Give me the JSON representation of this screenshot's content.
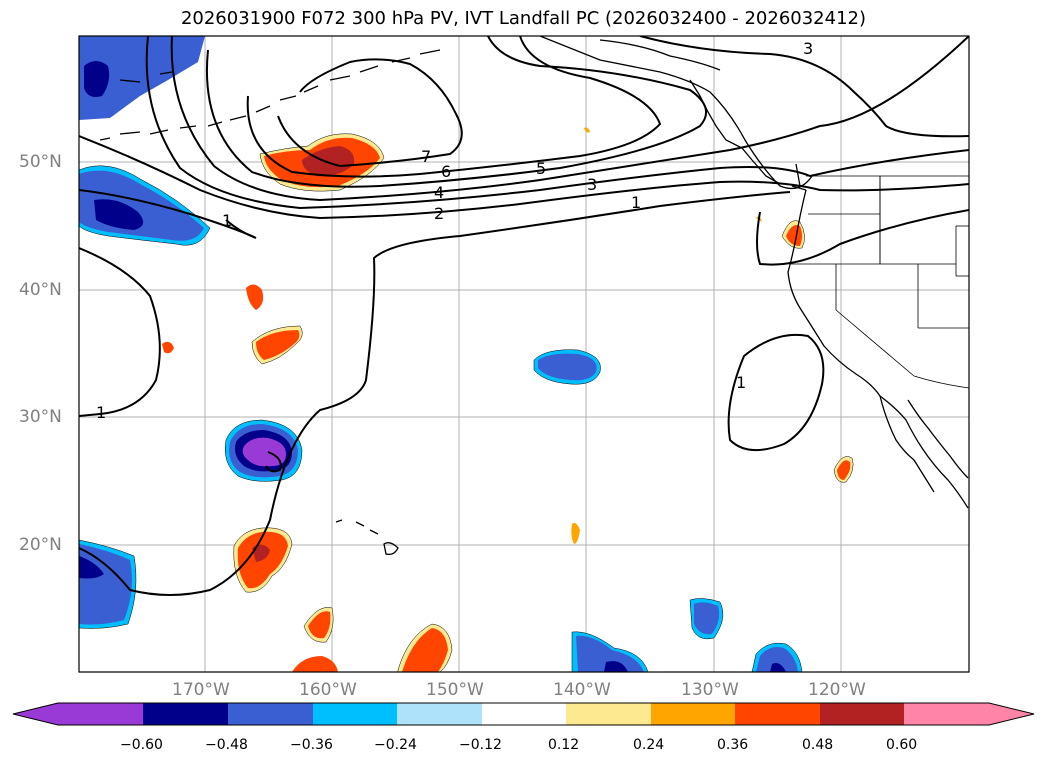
{
  "title": "2026031900 F072 300 hPa PV, IVT Landfall PC (2026032400 - 2026032412)",
  "axes": {
    "lon_labels": [
      "170°W",
      "160°W",
      "150°W",
      "140°W",
      "130°W",
      "120°W"
    ],
    "lat_labels": [
      "50°N",
      "40°N",
      "30°N",
      "20°N"
    ]
  },
  "contour_labels": [
    "7",
    "6",
    "5",
    "4",
    "3",
    "2",
    "1",
    "3",
    "1",
    "1",
    "1"
  ],
  "colorbar": {
    "ticks": [
      "−0.60",
      "−0.48",
      "−0.36",
      "−0.24",
      "−0.12",
      "0.12",
      "0.24",
      "0.36",
      "0.48",
      "0.60"
    ],
    "colors": [
      "#9a3ad6",
      "#00008b",
      "#3a5fd2",
      "#00bfff",
      "#aee2fa",
      "#ffffff",
      "#fde990",
      "#ffa500",
      "#ff4500",
      "#b22222",
      "#ff85a8"
    ]
  },
  "fill_colors": {
    "neg1": "#00bfff",
    "neg2": "#3a5fd2",
    "neg3": "#00008b",
    "neg4": "#9a3ad6",
    "pos1": "#fde990",
    "pos2": "#ffa500",
    "pos3": "#ff4500",
    "pos4": "#b22222"
  }
}
